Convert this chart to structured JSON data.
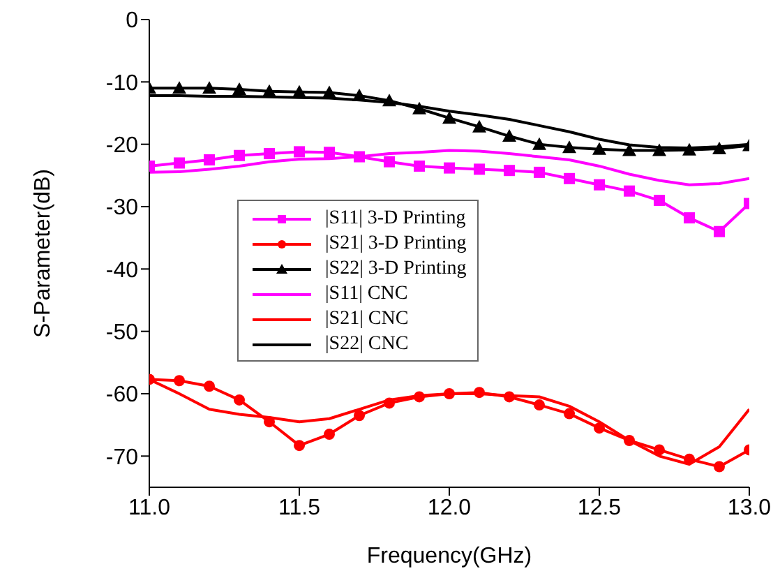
{
  "chart_data": {
    "type": "line",
    "xlabel": "Frequency(GHz)",
    "ylabel": "S-Parameter(dB)",
    "x": [
      11.0,
      11.1,
      11.2,
      11.3,
      11.4,
      11.5,
      11.6,
      11.7,
      11.8,
      11.9,
      12.0,
      12.1,
      12.2,
      12.3,
      12.4,
      12.5,
      12.6,
      12.7,
      12.8,
      12.9,
      13.0
    ],
    "xlim": [
      11.0,
      13.0
    ],
    "xticks": [
      {
        "value": 11.0,
        "label": "11.0"
      },
      {
        "value": 11.5,
        "label": "11.5"
      },
      {
        "value": 12.0,
        "label": "12.0"
      },
      {
        "value": 12.5,
        "label": "12.5"
      },
      {
        "value": 13.0,
        "label": "13.0"
      }
    ],
    "ylim": [
      -75,
      0
    ],
    "yticks": [
      0,
      -10,
      -20,
      -30,
      -40,
      -50,
      -60,
      -70
    ],
    "grid": false,
    "legend": "center left",
    "series": [
      {
        "name": "|S11| 3-D Printing",
        "color": "#ff00ff",
        "marker": "square",
        "values": [
          -23.5,
          -23,
          -22.5,
          -21.8,
          -21.5,
          -21.2,
          -21.3,
          -22,
          -22.8,
          -23.5,
          -23.8,
          -24,
          -24.2,
          -24.5,
          -25.5,
          -26.5,
          -27.5,
          -29,
          -31.8,
          -34,
          -29.5
        ]
      },
      {
        "name": "|S21| 3-D Printing",
        "color": "#ff0000",
        "marker": "circle",
        "values": [
          -57.7,
          -57.9,
          -58.8,
          -61,
          -64.5,
          -68.3,
          -66.5,
          -63.5,
          -61.5,
          -60.5,
          -60,
          -59.8,
          -60.5,
          -61.8,
          -63.2,
          -65.5,
          -67.5,
          -69,
          -70.5,
          -71.7,
          -69
        ]
      },
      {
        "name": "|S22| 3-D Printing",
        "color": "#000000",
        "marker": "triangle",
        "values": [
          -11,
          -11,
          -11,
          -11.2,
          -11.5,
          -11.6,
          -11.7,
          -12.2,
          -13,
          -14.3,
          -15.8,
          -17.2,
          -18.7,
          -20,
          -20.5,
          -20.8,
          -21,
          -21,
          -20.9,
          -20.7,
          -20.2
        ]
      },
      {
        "name": "|S11| CNC",
        "color": "#ff00ff",
        "marker": "none",
        "values": [
          -24.5,
          -24.4,
          -24,
          -23.5,
          -22.8,
          -22.4,
          -22.3,
          -22,
          -21.5,
          -21.3,
          -21,
          -21.1,
          -21.5,
          -22,
          -22.5,
          -23.5,
          -24.8,
          -25.8,
          -26.5,
          -26.3,
          -25.5
        ]
      },
      {
        "name": "|S21| CNC",
        "color": "#ff0000",
        "marker": "none",
        "values": [
          -57.7,
          -60,
          -62.5,
          -63.3,
          -63.8,
          -64.5,
          -64,
          -62.5,
          -61,
          -60.3,
          -60,
          -60,
          -60.3,
          -60.5,
          -62,
          -64.5,
          -67.5,
          -70,
          -71.3,
          -68.5,
          -62.5
        ]
      },
      {
        "name": "|S22| CNC",
        "color": "#000000",
        "marker": "none",
        "values": [
          -12.2,
          -12.2,
          -12.3,
          -12.3,
          -12.4,
          -12.5,
          -12.6,
          -12.9,
          -13.3,
          -13.9,
          -14.7,
          -15.3,
          -16,
          -17,
          -18,
          -19.2,
          -20.1,
          -20.5,
          -20.6,
          -20.4,
          -20
        ]
      }
    ]
  }
}
